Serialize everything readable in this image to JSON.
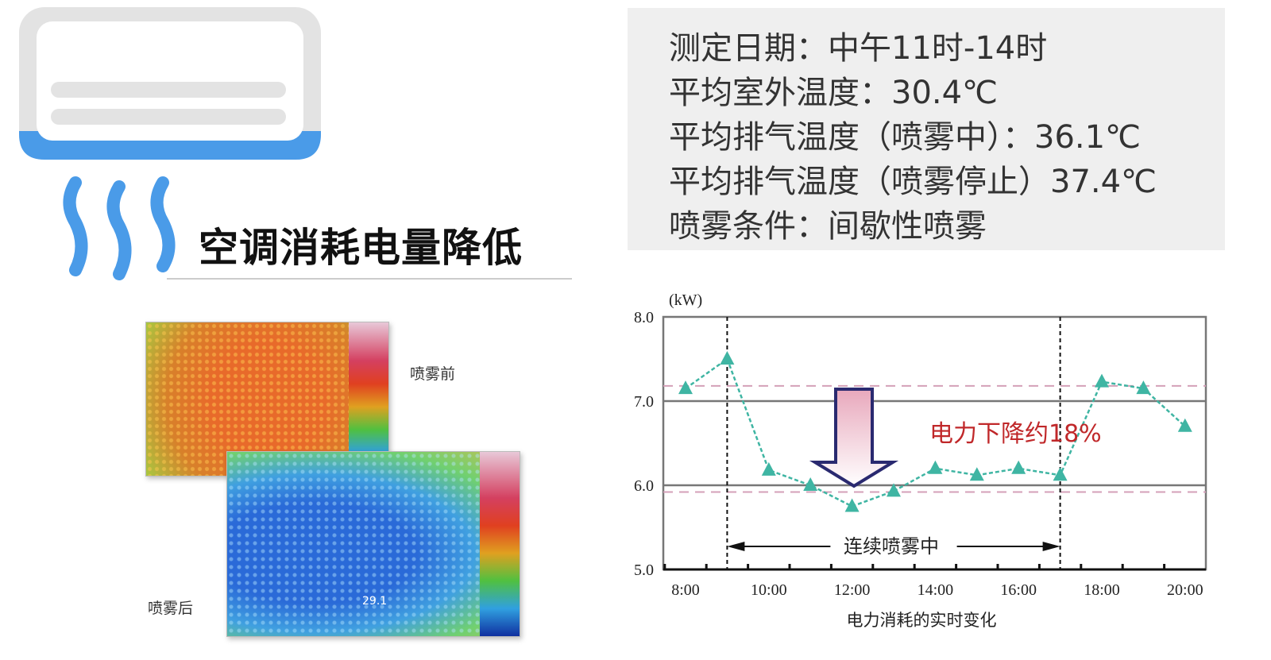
{
  "headline": "空调消耗电量降低",
  "info": {
    "lines": [
      "测定日期：中午11时-14时",
      "平均室外温度：30.4℃",
      "平均排气温度（喷雾中）：36.1℃",
      "平均排气温度（喷雾停止）37.4℃",
      "喷雾条件：间歇性喷雾"
    ]
  },
  "thermal": {
    "before_label": "喷雾前",
    "after_label": "喷雾后",
    "after_reading": "29.1"
  },
  "icons": {
    "air_conditioner": "air-conditioner-icon",
    "airflow": "airflow-waves-icon"
  },
  "colors": {
    "ac_blue": "#4a9be8",
    "series": "#3fb5a3",
    "annotation": "#c0282a",
    "reference": "#d4a0b8"
  },
  "chart_data": {
    "type": "line",
    "unit_label": "(kW)",
    "xlabel": "电力消耗的实时变化",
    "x": [
      "8:00",
      "9:00",
      "10:00",
      "11:00",
      "12:00",
      "13:00",
      "14:00",
      "15:00",
      "16:00",
      "17:00",
      "18:00",
      "19:00",
      "20:00"
    ],
    "x_tick_labels": [
      "8:00",
      "10:00",
      "12:00",
      "14:00",
      "16:00",
      "18:00",
      "20:00"
    ],
    "values": [
      7.15,
      7.5,
      6.18,
      6.0,
      5.75,
      5.93,
      6.2,
      6.12,
      6.2,
      6.12,
      7.23,
      7.15,
      6.7
    ],
    "ylim": [
      5.0,
      8.0
    ],
    "y_ticks": [
      "5.0",
      "6.0",
      "7.0",
      "8.0"
    ],
    "reference_lines": [
      7.18,
      5.92
    ],
    "spray_period": [
      "9:00",
      "17:00"
    ],
    "spray_label": "连续喷雾中",
    "annotation": "电力下降约18%",
    "grid": true
  }
}
